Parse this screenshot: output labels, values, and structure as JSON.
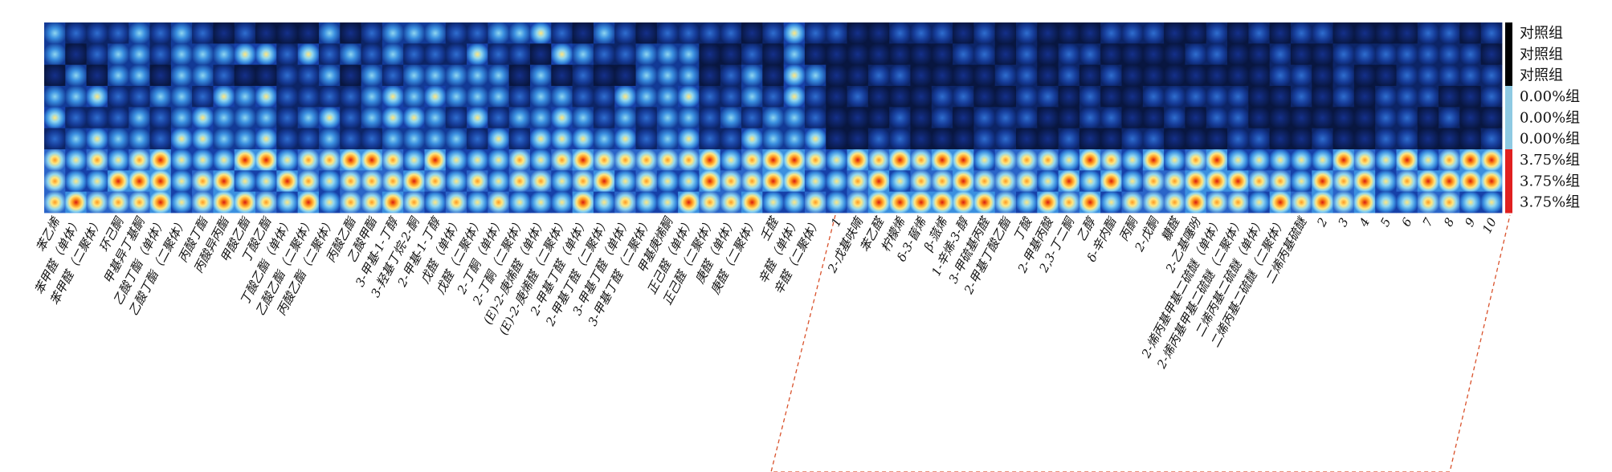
{
  "chart_data": {
    "type": "heatmap",
    "rows": [
      {
        "group": "对照组",
        "color": "#000000",
        "level": 0.3
      },
      {
        "group": "对照组",
        "color": "#000000",
        "level": 0.3
      },
      {
        "group": "对照组",
        "color": "#000000",
        "level": 0.3
      },
      {
        "group": "0.00%组",
        "color": "#8ec9e2",
        "level": 0.4
      },
      {
        "group": "0.00%组",
        "color": "#8ec9e2",
        "level": 0.4
      },
      {
        "group": "0.00%组",
        "color": "#8ec9e2",
        "level": 0.4
      },
      {
        "group": "3.75%组",
        "color": "#e02020",
        "level": 0.75
      },
      {
        "group": "3.75%组",
        "color": "#e02020",
        "level": 0.75
      },
      {
        "group": "3.75%组",
        "color": "#e02020",
        "level": 0.75
      }
    ],
    "columns": [
      "苯乙烯",
      "苯甲醛（单体）",
      "苯甲醛（二聚体）",
      "环己酮",
      "甲基异丁基酮",
      "乙酸丁酯（单体）",
      "乙酸丁酯（二聚体）",
      "丙酸丁酯",
      "丙酸异丙酯",
      "甲酸乙酯",
      "丁酸乙酯",
      "丁酸乙酯（单体）",
      "乙酸乙酯（二聚体）",
      "丙酸乙酯（二聚体）",
      "丙酸乙酯",
      "乙酸甲酯",
      "3-甲基-1-丁醇",
      "3-羟基丁烷-2-酮",
      "2-甲基-1-丁醇",
      "戊醛（单体）",
      "戊醛（二聚体）",
      "2-丁酮（单体）",
      "2-丁酮（二聚体）",
      "(E)-2-庚烯醛（单体）",
      "(E)-2-庚烯醛（二聚体）",
      "2-甲基丁醛（单体）",
      "2-甲基丁醛（二聚体）",
      "3-甲基丁醛（单体）",
      "3-甲基丁醛（二聚体）",
      "甲基庚烯酮",
      "正己醛（单体）",
      "正己醛（二聚体）",
      "庚醛（单体）",
      "庚醛（二聚体）",
      "壬醛",
      "辛醛（单体）",
      "辛醛（二聚体）",
      "1",
      "2-戊基呋喃",
      "苯乙醛",
      "柠檬烯",
      "δ-3-蒈烯",
      "β-蒎烯",
      "1-辛烯-3-醇",
      "3-甲硫基丙醛",
      "2-甲基丁酸乙酯",
      "丁酸",
      "2-甲基丙酸",
      "2,3-丁二酮",
      "乙醇",
      "δ-辛内酯",
      "丙酮",
      "2-戊酮",
      "糠醛",
      "2-乙基噻吩",
      "2-烯丙基甲基二硫醚（单体）",
      "2-烯丙基甲基二硫醚（二聚体）",
      "二烯丙基二硫醚（单体）",
      "二烯丙基二硫醚（二聚体）",
      "二烯丙基硫醚",
      "2",
      "3",
      "4",
      "5",
      "6",
      "7",
      "8",
      "9",
      "10"
    ],
    "group_legend": [
      "对照组",
      "0.00%组",
      "3.75%组"
    ],
    "colormap": [
      "#0a1a4a",
      "#1640a8",
      "#3a8fe0",
      "#8fd6f0",
      "#ffe680",
      "#ff9a20",
      "#d81a10"
    ],
    "callout": "dashed red bracket linking compounds 1–10 region"
  }
}
